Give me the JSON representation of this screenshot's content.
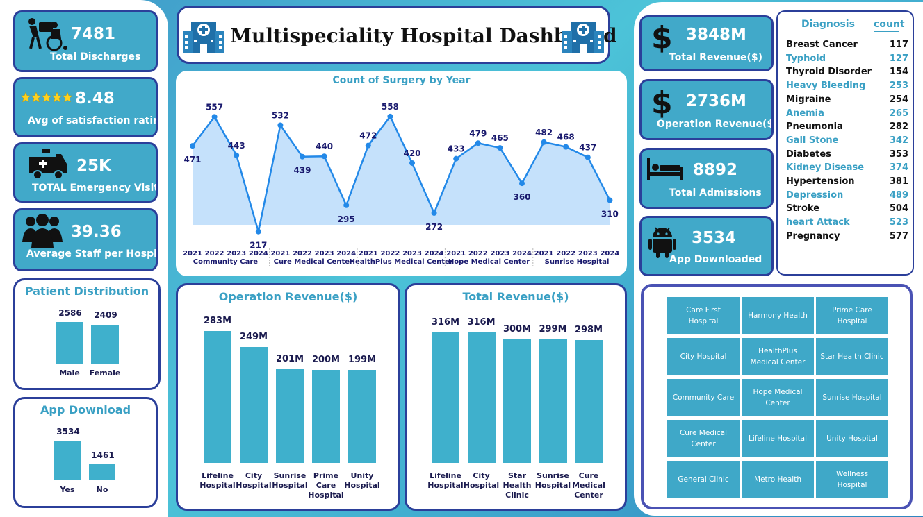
{
  "title": "Multispeciality Hospital Dashboard",
  "kpis_left": [
    {
      "value": "7481",
      "label": "Total Discharges",
      "icon": "wheelchair-icon"
    },
    {
      "value": "8.48",
      "label": "Avg of satisfaction rating",
      "icon": "five-star-icon"
    },
    {
      "value": "25K",
      "label": "TOTAL Emergency Visits",
      "icon": "ambulance-icon"
    },
    {
      "value": "39.36",
      "label": "Average Staff per Hospital",
      "icon": "staff-group-icon"
    }
  ],
  "kpis_right": [
    {
      "value": "3848M",
      "label": "Total Revenue($)",
      "icon": "dollar-icon"
    },
    {
      "value": "2736M",
      "label": "Operation Revenue($)",
      "icon": "dollar-icon"
    },
    {
      "value": "8892",
      "label": "Total Admissions",
      "icon": "hospital-bed-icon"
    },
    {
      "value": "3534",
      "label": "App Downloaded",
      "icon": "android-icon"
    }
  ],
  "patient_distribution": {
    "title": "Patient Distribution",
    "chart_data": {
      "type": "bar",
      "categories": [
        "Male",
        "Female"
      ],
      "values": [
        2586,
        2409
      ]
    }
  },
  "app_download": {
    "title": "App Download",
    "chart_data": {
      "type": "bar",
      "categories": [
        "Yes",
        "No"
      ],
      "values": [
        3534,
        1461
      ]
    }
  },
  "surgery": {
    "title": "Count of Surgery by Year",
    "chart_data": {
      "type": "area",
      "groups": [
        {
          "name": "Community Care",
          "years": [
            "2021",
            "2022",
            "2023",
            "2024"
          ],
          "values": [
            471,
            557,
            443,
            217
          ]
        },
        {
          "name": "Cure Medical Center",
          "years": [
            "2021",
            "2022",
            "2023",
            "2024"
          ],
          "values": [
            532,
            439,
            440,
            295
          ]
        },
        {
          "name": "HealthPlus Medical Center",
          "years": [
            "2021",
            "2022",
            "2023",
            "2024"
          ],
          "values": [
            472,
            558,
            420,
            272
          ]
        },
        {
          "name": "Hope Medical Center",
          "years": [
            "2021",
            "2022",
            "2023",
            "2024"
          ],
          "values": [
            433,
            479,
            465,
            360
          ]
        },
        {
          "name": "Sunrise Hospital",
          "years": [
            "2021",
            "2022",
            "2023",
            "2024"
          ],
          "values": [
            482,
            468,
            437,
            310
          ]
        }
      ],
      "ylim": [
        200,
        570
      ]
    }
  },
  "operation_revenue": {
    "title": "Operation Revenue($)",
    "chart_data": {
      "type": "bar",
      "categories": [
        "Lifeline Hospital",
        "City Hospital",
        "Sunrise Hospital",
        "Prime Care Hospital",
        "Unity Hospital"
      ],
      "values": [
        283,
        249,
        201,
        200,
        199
      ],
      "labels": [
        "283M",
        "249M",
        "201M",
        "200M",
        "199M"
      ]
    }
  },
  "total_revenue": {
    "title": "Total Revenue($)",
    "chart_data": {
      "type": "bar",
      "categories": [
        "Lifeline Hospital",
        "City Hospital",
        "Star Health Clinic",
        "Sunrise Hospital",
        "Cure Medical Center"
      ],
      "values": [
        316,
        316,
        300,
        299,
        298
      ],
      "labels": [
        "316M",
        "316M",
        "300M",
        "299M",
        "298M"
      ]
    }
  },
  "diagnosis": {
    "header_name": "Diagnosis",
    "header_count": "count",
    "rows": [
      {
        "name": "Breast Cancer",
        "count": "117"
      },
      {
        "name": "Typhoid",
        "count": "127"
      },
      {
        "name": "Thyroid Disorder",
        "count": "154"
      },
      {
        "name": "Heavy Bleeding",
        "count": "253"
      },
      {
        "name": "Migraine",
        "count": "254"
      },
      {
        "name": "Anemia",
        "count": "265"
      },
      {
        "name": "Pneumonia",
        "count": "282"
      },
      {
        "name": "Gall Stone",
        "count": "342"
      },
      {
        "name": "Diabetes",
        "count": "353"
      },
      {
        "name": "Kidney Disease",
        "count": "374"
      },
      {
        "name": "Hypertension",
        "count": "381"
      },
      {
        "name": "Depression",
        "count": "489"
      },
      {
        "name": "Stroke",
        "count": "504"
      },
      {
        "name": "heart Attack",
        "count": "523"
      },
      {
        "name": "Pregnancy",
        "count": "577"
      }
    ]
  },
  "hospitals": [
    "Care First Hospital",
    "Harmony Health",
    "Prime Care Hospital",
    "City Hospital",
    "HealthPlus Medical Center",
    "Star Health Clinic",
    "Community Care",
    "Hope Medical Center",
    "Sunrise Hospital",
    "Cure Medical Center",
    "Lifeline Hospital",
    "Unity Hospital",
    "General Clinic",
    "Metro Health",
    "Wellness Hospital"
  ],
  "colors": {
    "accent": "#41a9c9",
    "border": "#2b3f9a",
    "line": "#2389e8",
    "area": "#c5e1fb",
    "label": "#1a1a6e"
  }
}
